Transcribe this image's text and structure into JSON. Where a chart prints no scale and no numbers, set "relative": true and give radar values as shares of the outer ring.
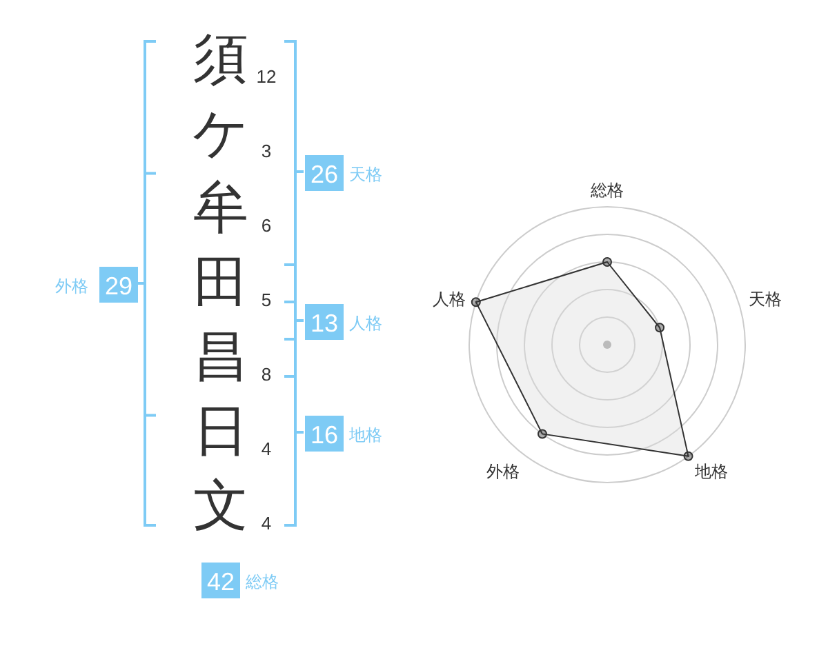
{
  "chart_data": [
    {
      "type": "other",
      "color": "#7ecbf5",
      "annotations": [
        "須",
        "ケ",
        "牟",
        "田",
        "昌",
        "日",
        "文",
        "12",
        "3",
        "6",
        "5",
        "8",
        "4",
        "4",
        "26",
        "天格",
        "13",
        "人格",
        "16",
        "地格",
        "29",
        "外格",
        "42",
        "総格"
      ]
    },
    {
      "type": "radar",
      "categories": [
        "総格",
        "天格",
        "地格",
        "外格",
        "人格"
      ],
      "relative": true,
      "grid": true,
      "marker": "circle",
      "series": [
        {
          "color": "#333333",
          "values": [
            0.6,
            0.4,
            1.0,
            0.8,
            1.0
          ]
        }
      ]
    }
  ]
}
